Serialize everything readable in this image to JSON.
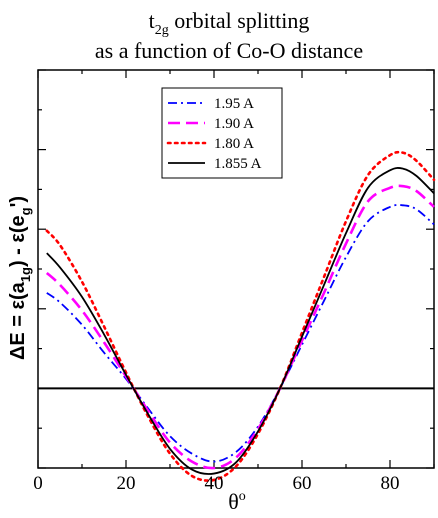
{
  "chart_data": {
    "type": "line",
    "title": {
      "line1_main": "t",
      "line1_sub": "2g",
      "line1_rest": " orbital splitting",
      "line2": "as a function of Co-O distance"
    },
    "xlabel": {
      "main": "θ",
      "sup": "o"
    },
    "ylabel": {
      "p1": "ΔE = ε(a",
      "p1_sub": "1g",
      "p2": ") - ε(e",
      "p2_sub": "g",
      "p3": "')"
    },
    "xlim": [
      0,
      90
    ],
    "ylim": [
      -1,
      4
    ],
    "xticks": [
      "0",
      "20",
      "40",
      "60",
      "80"
    ],
    "xtick_values": [
      0,
      20,
      40,
      60,
      80
    ],
    "x": [
      2,
      5,
      10,
      15,
      20,
      25,
      30,
      35,
      40,
      45,
      50,
      55,
      60,
      65,
      70,
      75,
      80,
      83,
      86,
      90
    ],
    "legend_position": "top-center",
    "series": [
      {
        "name": "1.95 A",
        "color": "#0000ff",
        "style": "dash-dot",
        "values": [
          1.2,
          1.08,
          0.8,
          0.45,
          0.12,
          -0.25,
          -0.6,
          -0.82,
          -0.92,
          -0.8,
          -0.48,
          0.0,
          0.55,
          1.1,
          1.65,
          2.1,
          2.28,
          2.3,
          2.25,
          2.06
        ]
      },
      {
        "name": "1.90 A",
        "color": "#ff00ff",
        "style": "dash",
        "values": [
          1.45,
          1.3,
          0.98,
          0.58,
          0.15,
          -0.28,
          -0.68,
          -0.92,
          -1.0,
          -0.87,
          -0.51,
          0.0,
          0.6,
          1.2,
          1.82,
          2.35,
          2.52,
          2.54,
          2.48,
          2.28
        ]
      },
      {
        "name": "1.80 A",
        "color": "#ff0000",
        "style": "dot",
        "values": [
          1.98,
          1.8,
          1.34,
          0.78,
          0.2,
          -0.35,
          -0.82,
          -1.1,
          -1.15,
          -0.98,
          -0.57,
          0.0,
          0.7,
          1.4,
          2.1,
          2.68,
          2.93,
          2.96,
          2.86,
          2.62
        ]
      },
      {
        "name": "1.855 A",
        "color": "#000000",
        "style": "solid",
        "values": [
          1.7,
          1.52,
          1.15,
          0.68,
          0.17,
          -0.32,
          -0.76,
          -1.02,
          -1.07,
          -0.93,
          -0.54,
          0.0,
          0.65,
          1.3,
          1.95,
          2.52,
          2.74,
          2.76,
          2.67,
          2.45
        ]
      }
    ]
  }
}
